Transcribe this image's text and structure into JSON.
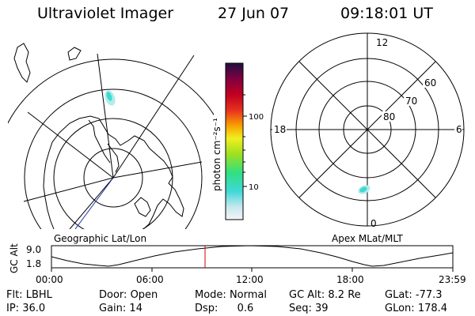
{
  "header": {
    "title": "Ultraviolet Imager",
    "date": "27 Jun 07",
    "time": "09:18:01 UT"
  },
  "left_map": {
    "caption": "Geographic Lat/Lon"
  },
  "right_map": {
    "caption": "Apex MLat/MLT",
    "mlt_labels": [
      "12",
      "18",
      "6",
      "0"
    ],
    "lat_labels": [
      "60",
      "70",
      "80"
    ]
  },
  "colorbar": {
    "unit_label": "photon cm⁻²s⁻¹",
    "ticks": [
      "100",
      "10"
    ]
  },
  "altitude_plot": {
    "ylabel": "GC Alt",
    "y_ticks": [
      "9.0",
      "1.8"
    ],
    "x_ticks": [
      "00:00",
      "06:00",
      "12:00",
      "18:00",
      "23:59"
    ],
    "marker_time": "09:18"
  },
  "footer": {
    "row1": [
      {
        "label": "Flt:",
        "value": "LBHL"
      },
      {
        "label": "Door:",
        "value": "Open"
      },
      {
        "label": "Mode:",
        "value": "Normal"
      },
      {
        "label": "GC Alt:",
        "value": "8.2 Re"
      },
      {
        "label": "GLat:",
        "value": "-77.3"
      }
    ],
    "row2": [
      {
        "label": "IP:",
        "value": "36.0"
      },
      {
        "label": "Gain:",
        "value": "14"
      },
      {
        "label": "Dsp:",
        "value": "0.6"
      },
      {
        "label": "Seq:",
        "value": "39"
      },
      {
        "label": "GLon:",
        "value": "178.4"
      }
    ]
  },
  "colors": {
    "aurora": "#40d8d0",
    "marker": "#cc0000",
    "track": "#2233aa"
  }
}
